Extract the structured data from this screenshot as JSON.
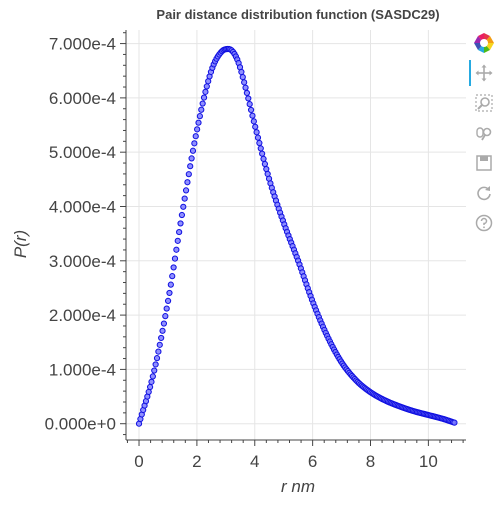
{
  "chart_data": {
    "type": "scatter",
    "title": "Pair distance distribution function (SASDC29)",
    "xlabel": "r nm",
    "ylabel": "P(r)",
    "xlim": [
      -0.45,
      11.3
    ],
    "ylim": [
      -3e-05,
      0.000725
    ],
    "xticks": [
      0,
      2,
      4,
      6,
      8,
      10
    ],
    "xtick_labels": [
      "0",
      "2",
      "4",
      "6",
      "8",
      "10"
    ],
    "yticks": [
      0,
      0.0001,
      0.0002,
      0.0003,
      0.0004,
      0.0005,
      0.0006,
      0.0007
    ],
    "ytick_labels": [
      "0.000e+0",
      "1.000e-4",
      "2.000e-4",
      "3.000e-4",
      "4.000e-4",
      "5.000e-4",
      "6.000e-4",
      "7.000e-4"
    ],
    "grid": true,
    "marker": {
      "shape": "circle",
      "fill": "#7b7bff",
      "stroke": "#1010e0"
    },
    "r_min": 0,
    "r_max": 10.9,
    "n_points": 229,
    "anchors": [
      [
        0,
        0
      ],
      [
        0.5,
        9.2e-05
      ],
      [
        1.0,
        0.000225
      ],
      [
        1.5,
        0.00039
      ],
      [
        2.0,
        0.00054
      ],
      [
        2.5,
        0.00065
      ],
      [
        2.85,
        0.000685
      ],
      [
        3.1,
        0.00069
      ],
      [
        3.4,
        0.00067
      ],
      [
        3.7,
        0.000615
      ],
      [
        4.0,
        0.00055
      ],
      [
        4.5,
        0.00045
      ],
      [
        5.0,
        0.00037
      ],
      [
        5.5,
        0.0003
      ],
      [
        6.0,
        0.000225
      ],
      [
        6.5,
        0.000162
      ],
      [
        7.0,
        0.000113
      ],
      [
        7.5,
        8e-05
      ],
      [
        8.0,
        5.8e-05
      ],
      [
        8.5,
        4.3e-05
      ],
      [
        9.0,
        3.2e-05
      ],
      [
        9.5,
        2.3e-05
      ],
      [
        10.0,
        1.6e-05
      ],
      [
        10.5,
        9e-06
      ],
      [
        10.9,
        2e-06
      ]
    ]
  },
  "toolbar": {
    "tools": [
      {
        "name": "bokeh-logo-icon"
      },
      {
        "name": "pan-tool-icon",
        "active": true
      },
      {
        "name": "box-zoom-tool-icon"
      },
      {
        "name": "wheel-zoom-tool-icon"
      },
      {
        "name": "save-tool-icon"
      },
      {
        "name": "reset-tool-icon"
      },
      {
        "name": "help-tool-icon"
      }
    ]
  },
  "colors": {
    "gridline": "#e5e5e5",
    "axis": "#444444",
    "text": "#444444",
    "toolbar_icon": "#aaaaaa",
    "active_tool": "#26aae1"
  }
}
